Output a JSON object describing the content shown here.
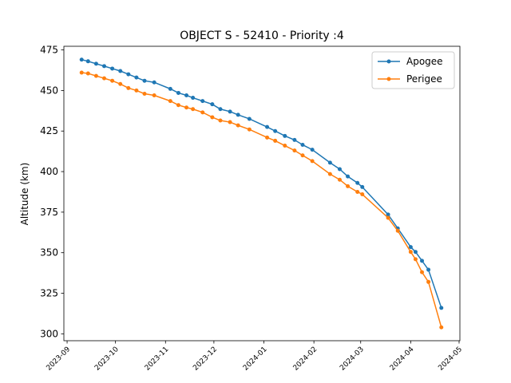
{
  "chart_data": {
    "type": "line",
    "title": "OBJECT S - 52410 - Priority :4",
    "y_label": "Altitude (km)",
    "x": [
      9,
      13,
      18,
      23,
      28,
      33,
      38,
      43,
      48,
      54,
      64,
      69,
      74,
      78,
      84,
      90,
      95,
      101,
      106,
      113,
      124,
      129,
      135,
      141,
      146,
      152,
      163,
      169,
      174,
      180,
      183,
      199,
      205,
      213,
      216,
      220,
      224,
      232
    ],
    "series": [
      {
        "name": "Apogee",
        "color": "#1f77b4",
        "values": [
          469,
          468,
          466.5,
          465,
          463.5,
          462,
          460,
          458,
          456,
          455,
          451,
          448.5,
          447,
          445.5,
          443.5,
          441.5,
          438.5,
          437,
          435,
          432.5,
          427.5,
          425,
          422,
          419.5,
          416.5,
          413.5,
          405.5,
          401.5,
          397,
          393,
          390.5,
          373.5,
          365,
          353.5,
          350.5,
          345,
          339.5,
          316
        ]
      },
      {
        "name": "Perigee",
        "color": "#ff7f0e",
        "values": [
          461,
          460.5,
          459,
          457.5,
          456,
          454,
          451.5,
          450,
          448,
          447,
          443.5,
          441,
          439.5,
          438.5,
          436.5,
          433.5,
          431.5,
          430.5,
          428.5,
          426,
          421,
          419,
          416,
          413,
          410,
          406.5,
          398.5,
          395,
          391,
          387.5,
          386,
          371.5,
          363.5,
          350.5,
          346,
          338,
          332,
          304
        ]
      }
    ],
    "xlim": [
      -2,
      243.5
    ],
    "ylim": [
      295.75,
      477.25
    ],
    "xticks": [
      {
        "value": 0,
        "label": "2023-09"
      },
      {
        "value": 30,
        "label": "2023-10"
      },
      {
        "value": 61,
        "label": "2023-11"
      },
      {
        "value": 91,
        "label": "2023-12"
      },
      {
        "value": 122,
        "label": "2024-01"
      },
      {
        "value": 153,
        "label": "2024-02"
      },
      {
        "value": 182,
        "label": "2024-03"
      },
      {
        "value": 213,
        "label": "2024-04"
      },
      {
        "value": 243,
        "label": "2024-05"
      }
    ],
    "yticks": [
      300,
      325,
      350,
      375,
      400,
      425,
      450,
      475
    ],
    "legend": "upper right"
  }
}
